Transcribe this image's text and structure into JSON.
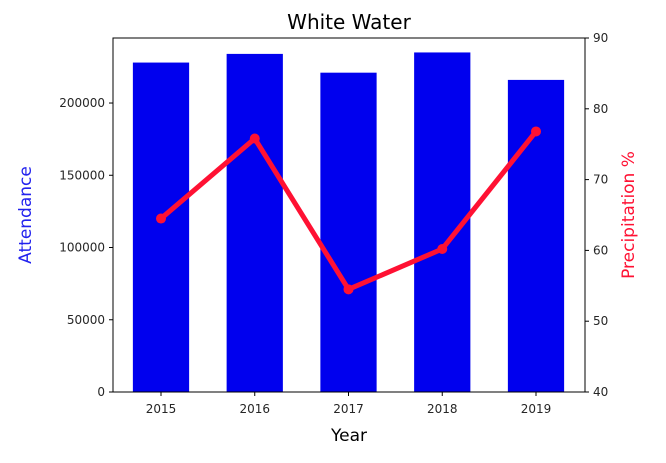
{
  "chart_data": {
    "type": "bar+line",
    "title": "White Water",
    "xlabel": "Year",
    "categories": [
      "2015",
      "2016",
      "2017",
      "2018",
      "2019"
    ],
    "bar_series": {
      "name": "",
      "values": [
        228000,
        234000,
        221000,
        235000,
        216000
      ],
      "color": "#0000ee",
      "axis": "left"
    },
    "line_series": {
      "name": "",
      "values": [
        64.5,
        75.8,
        54.5,
        60.2,
        76.8
      ],
      "color": "#ff1133",
      "axis": "right"
    },
    "y_left": {
      "label": "Attendance",
      "color": "#2222ee",
      "ylim": [
        0,
        245000
      ],
      "ticks": [
        0,
        50000,
        100000,
        150000,
        200000
      ]
    },
    "y_right": {
      "label": "Precipitation %",
      "color": "#ff1133",
      "ylim": [
        40,
        90
      ],
      "ticks": [
        40,
        50,
        60,
        70,
        80,
        90
      ]
    },
    "grid": false,
    "legend": "none"
  }
}
